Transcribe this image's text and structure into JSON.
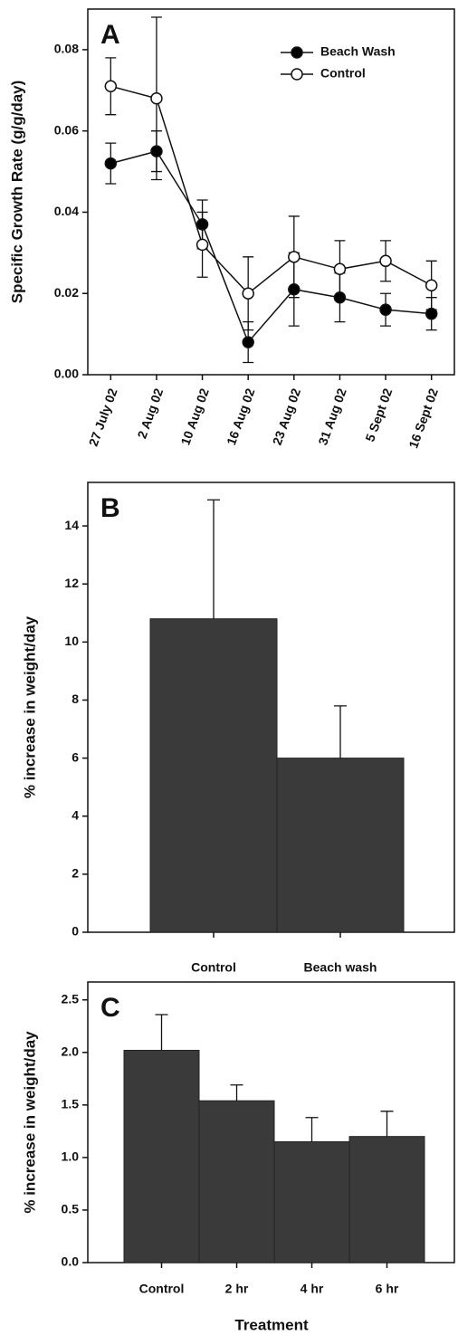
{
  "chart_data": [
    {
      "type": "line",
      "title": "A",
      "ylabel": "Specific Growth Rate (g/g/day)",
      "categories": [
        "27 July 02",
        "2 Aug 02",
        "10 Aug 02",
        "16 Aug 02",
        "23 Aug 02",
        "31 Aug 02",
        "5 Sept 02",
        "16 Sept 02"
      ],
      "series": [
        {
          "name": "Beach Wash",
          "color": "#000000",
          "values": [
            0.052,
            0.055,
            0.037,
            0.008,
            0.021,
            0.019,
            0.016,
            0.015
          ],
          "errors": [
            0.005,
            0.005,
            0.006,
            0.005,
            0.009,
            0.006,
            0.004,
            0.004
          ]
        },
        {
          "name": "Control",
          "color": "#ffffff",
          "values": [
            0.071,
            0.068,
            0.032,
            0.02,
            0.029,
            0.026,
            0.028,
            0.022
          ],
          "errors": [
            0.007,
            0.02,
            0.008,
            0.009,
            0.01,
            0.007,
            0.005,
            0.006
          ]
        }
      ],
      "ylim": [
        0,
        0.09
      ],
      "yticks": [
        {
          "value": 0,
          "label": "0.00"
        },
        0.02,
        0.04,
        0.06,
        0.08
      ],
      "legend": "upper right"
    },
    {
      "type": "bar",
      "title": "B",
      "ylabel": "% increase in weight/day",
      "categories": [
        "Control",
        "Beach wash"
      ],
      "values": [
        10.8,
        6.0
      ],
      "errors": [
        4.1,
        1.8
      ],
      "color": "#3a3a3a",
      "ylim": [
        0,
        15.5
      ],
      "yticks": [
        0,
        2,
        4,
        6,
        8,
        10,
        12,
        14
      ]
    },
    {
      "type": "bar",
      "title": "C",
      "ylabel": "% increase in weight/day",
      "xlabel": "Treatment",
      "categories": [
        "Control",
        "2 hr",
        "4 hr",
        "6 hr"
      ],
      "values": [
        2.02,
        1.54,
        1.15,
        1.2
      ],
      "errors": [
        0.34,
        0.15,
        0.23,
        0.24
      ],
      "color": "#3a3a3a",
      "ylim": [
        0,
        2.67
      ],
      "yticks": [
        {
          "value": 0,
          "label": "0.0"
        },
        0.5,
        {
          "value": 1,
          "label": "1.0"
        },
        1.5,
        {
          "value": 2,
          "label": "2.0"
        },
        2.5
      ]
    }
  ]
}
